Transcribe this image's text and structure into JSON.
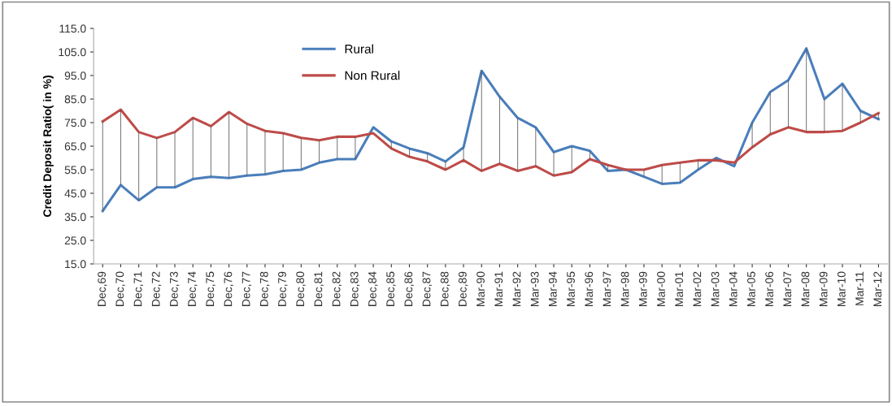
{
  "chart_data": {
    "type": "line",
    "ylabel": "Credit Deposit Ratio( in %)",
    "categories": [
      "Dec,69",
      "Dec,70",
      "Dec,71",
      "Dec,72",
      "Dec,73",
      "Dec,74",
      "Dec,75",
      "Dec,76",
      "Dec,77",
      "Dec,78",
      "Dec,79",
      "Dec,80",
      "Dec,81",
      "Dec,82",
      "Dec,83",
      "Dec,84",
      "Dec,85",
      "Dec,86",
      "Dec,87",
      "Dec,88",
      "Dec,89",
      "Mar-90",
      "Mar-91",
      "Mar-92",
      "Mar-93",
      "Mar-94",
      "Mar-95",
      "Mar-96",
      "Mar-97",
      "Mar-98",
      "Mar-99",
      "Mar-00",
      "Mar-01",
      "Mar-02",
      "Mar-03",
      "Mar-04",
      "Mar-05",
      "Mar-06",
      "Mar-07",
      "Mar-08",
      "Mar-09",
      "Mar-10",
      "Mar-11",
      "Mar-12"
    ],
    "series": [
      {
        "name": "Rural",
        "color": "#4a7ebb",
        "values": [
          37.5,
          48.5,
          42,
          47.5,
          47.5,
          51,
          52,
          51.5,
          52.5,
          53,
          54.5,
          55,
          58,
          59.5,
          59.5,
          73,
          67,
          64,
          62,
          58.5,
          64.5,
          97,
          86,
          77,
          73,
          62.5,
          65,
          63,
          54.5,
          55,
          52,
          49,
          49.5,
          55,
          60,
          56.5,
          75,
          88,
          93,
          106.5,
          85,
          91.5,
          80,
          76.5
        ]
      },
      {
        "name": "Non Rural",
        "color": "#be4b48",
        "values": [
          75.5,
          80.5,
          71,
          68.5,
          71,
          77,
          73.5,
          79.5,
          74.5,
          71.5,
          70.5,
          68.5,
          67.5,
          69,
          69,
          70.5,
          64,
          60.5,
          58.5,
          55,
          59,
          54.5,
          57.5,
          54.5,
          56.5,
          52.5,
          54,
          59.5,
          57,
          55,
          55,
          57,
          58,
          59,
          59,
          58,
          64.5,
          70,
          73,
          71,
          71,
          71.5,
          75,
          79
        ],
        "errors": [
          [
            37.5,
            75.5
          ],
          [
            48.5,
            80.5
          ],
          [
            42,
            71
          ],
          [
            47.5,
            68.5
          ],
          [
            47.5,
            71
          ],
          [
            51,
            77
          ],
          [
            52,
            73.5
          ],
          [
            51.5,
            79.5
          ],
          [
            52.5,
            74.5
          ],
          [
            53,
            71.5
          ],
          [
            54.5,
            70.5
          ],
          [
            55,
            68.5
          ],
          [
            58,
            67.5
          ],
          [
            59.5,
            69
          ],
          [
            59.5,
            69
          ],
          null,
          [
            64,
            67
          ],
          [
            60.5,
            64
          ],
          [
            58.5,
            62
          ],
          [
            55,
            58.5
          ],
          [
            59,
            64.5
          ],
          [
            54.5,
            97
          ],
          [
            57.5,
            86
          ],
          [
            54.5,
            77
          ],
          [
            56.5,
            73
          ],
          [
            52.5,
            62.5
          ],
          [
            54,
            65
          ],
          [
            59.5,
            63
          ],
          [
            54.5,
            57
          ],
          null,
          [
            52,
            55
          ],
          [
            49,
            57
          ],
          [
            49.5,
            58
          ],
          [
            55,
            59
          ],
          [
            59,
            60
          ],
          null,
          [
            64.5,
            75
          ],
          [
            70,
            88
          ],
          [
            73,
            93
          ],
          [
            71,
            106.5
          ],
          [
            71,
            85
          ],
          [
            71.5,
            91.5
          ],
          [
            75,
            80
          ],
          [
            76.5,
            79
          ]
        ]
      }
    ],
    "ylim": [
      15,
      115
    ],
    "yticks": [
      {
        "value": 15,
        "label": "15.0"
      },
      {
        "value": 25,
        "label": "25.0"
      },
      {
        "value": 35,
        "label": "35.0"
      },
      {
        "value": 45,
        "label": "45.0"
      },
      {
        "value": 55,
        "label": "55.0"
      },
      {
        "value": 65,
        "label": "65.0"
      },
      {
        "value": 75,
        "label": "75.0"
      },
      {
        "value": 85,
        "label": "85.0"
      },
      {
        "value": 95,
        "label": "95.0"
      },
      {
        "value": 105,
        "label": "105.0"
      },
      {
        "value": 115,
        "label": "115.0"
      }
    ],
    "grid": false,
    "legend": "top",
    "marker": "none",
    "line_style": "solid"
  }
}
